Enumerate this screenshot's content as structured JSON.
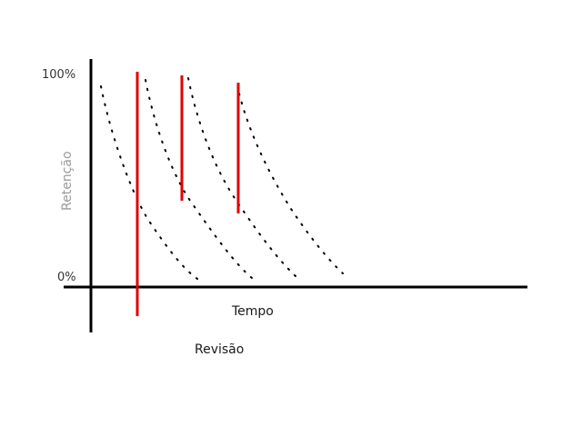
{
  "diagram": {
    "y_top_label": "100%",
    "y_bottom_label": "0%",
    "y_axis_title": "Retenção",
    "x_axis_title": "Tempo",
    "review_label": "Revisão",
    "review_count": 3,
    "forgetting_curve_count": 4,
    "colors": {
      "axis": "#000000",
      "review_marker": "#e00000",
      "curve": "#000000"
    }
  }
}
